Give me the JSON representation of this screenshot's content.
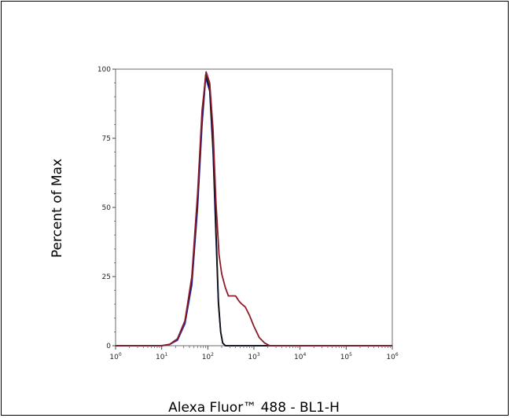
{
  "chart_data": {
    "type": "line",
    "xlabel": "Alexa Fluor™ 488 - BL1-H",
    "ylabel": "Percent of Max",
    "x_scale": "log",
    "xlim": [
      1,
      1000000
    ],
    "ylim": [
      0,
      100
    ],
    "x_ticks": [
      {
        "base": "10",
        "exp": "0",
        "value": 1
      },
      {
        "base": "10",
        "exp": "1",
        "value": 10
      },
      {
        "base": "10",
        "exp": "2",
        "value": 100
      },
      {
        "base": "10",
        "exp": "3",
        "value": 1000
      },
      {
        "base": "10",
        "exp": "4",
        "value": 10000
      },
      {
        "base": "10",
        "exp": "5",
        "value": 100000
      },
      {
        "base": "10",
        "exp": "6",
        "value": 1000000
      }
    ],
    "y_ticks": [
      "0",
      "25",
      "50",
      "75",
      "100"
    ],
    "y_tick_values": [
      0,
      25,
      50,
      75,
      100
    ],
    "grid": false,
    "legend": "none",
    "series": [
      {
        "color": "#1e2bbf",
        "x": [
          1,
          10,
          15,
          22,
          32,
          45,
          60,
          75,
          90,
          110,
          130,
          150,
          170,
          190,
          210,
          240,
          300,
          1000000
        ],
        "y": [
          0,
          0,
          0.5,
          2,
          8,
          22,
          50,
          80,
          97,
          92,
          70,
          40,
          15,
          5,
          1,
          0,
          0,
          0
        ]
      },
      {
        "color": "#111111",
        "x": [
          1,
          10,
          15,
          22,
          32,
          45,
          60,
          75,
          90,
          110,
          130,
          150,
          170,
          190,
          210,
          240,
          300,
          1000000
        ],
        "y": [
          0,
          0,
          0.5,
          2.5,
          9,
          24,
          53,
          83,
          98,
          93,
          72,
          42,
          16,
          5,
          1,
          0,
          0,
          0
        ]
      },
      {
        "color": "#8e1a2a",
        "x": [
          1,
          10,
          15,
          22,
          32,
          45,
          60,
          75,
          92,
          110,
          130,
          150,
          175,
          200,
          240,
          280,
          330,
          400,
          480,
          550,
          650,
          800,
          1000,
          1300,
          1700,
          2200,
          3000,
          1000000
        ],
        "y": [
          0,
          0,
          0.5,
          2.5,
          9,
          25,
          55,
          85,
          99,
          95,
          78,
          52,
          33,
          26,
          21,
          18,
          18,
          18,
          16,
          15,
          14,
          11,
          7,
          3,
          1,
          0,
          0,
          0
        ]
      }
    ]
  }
}
